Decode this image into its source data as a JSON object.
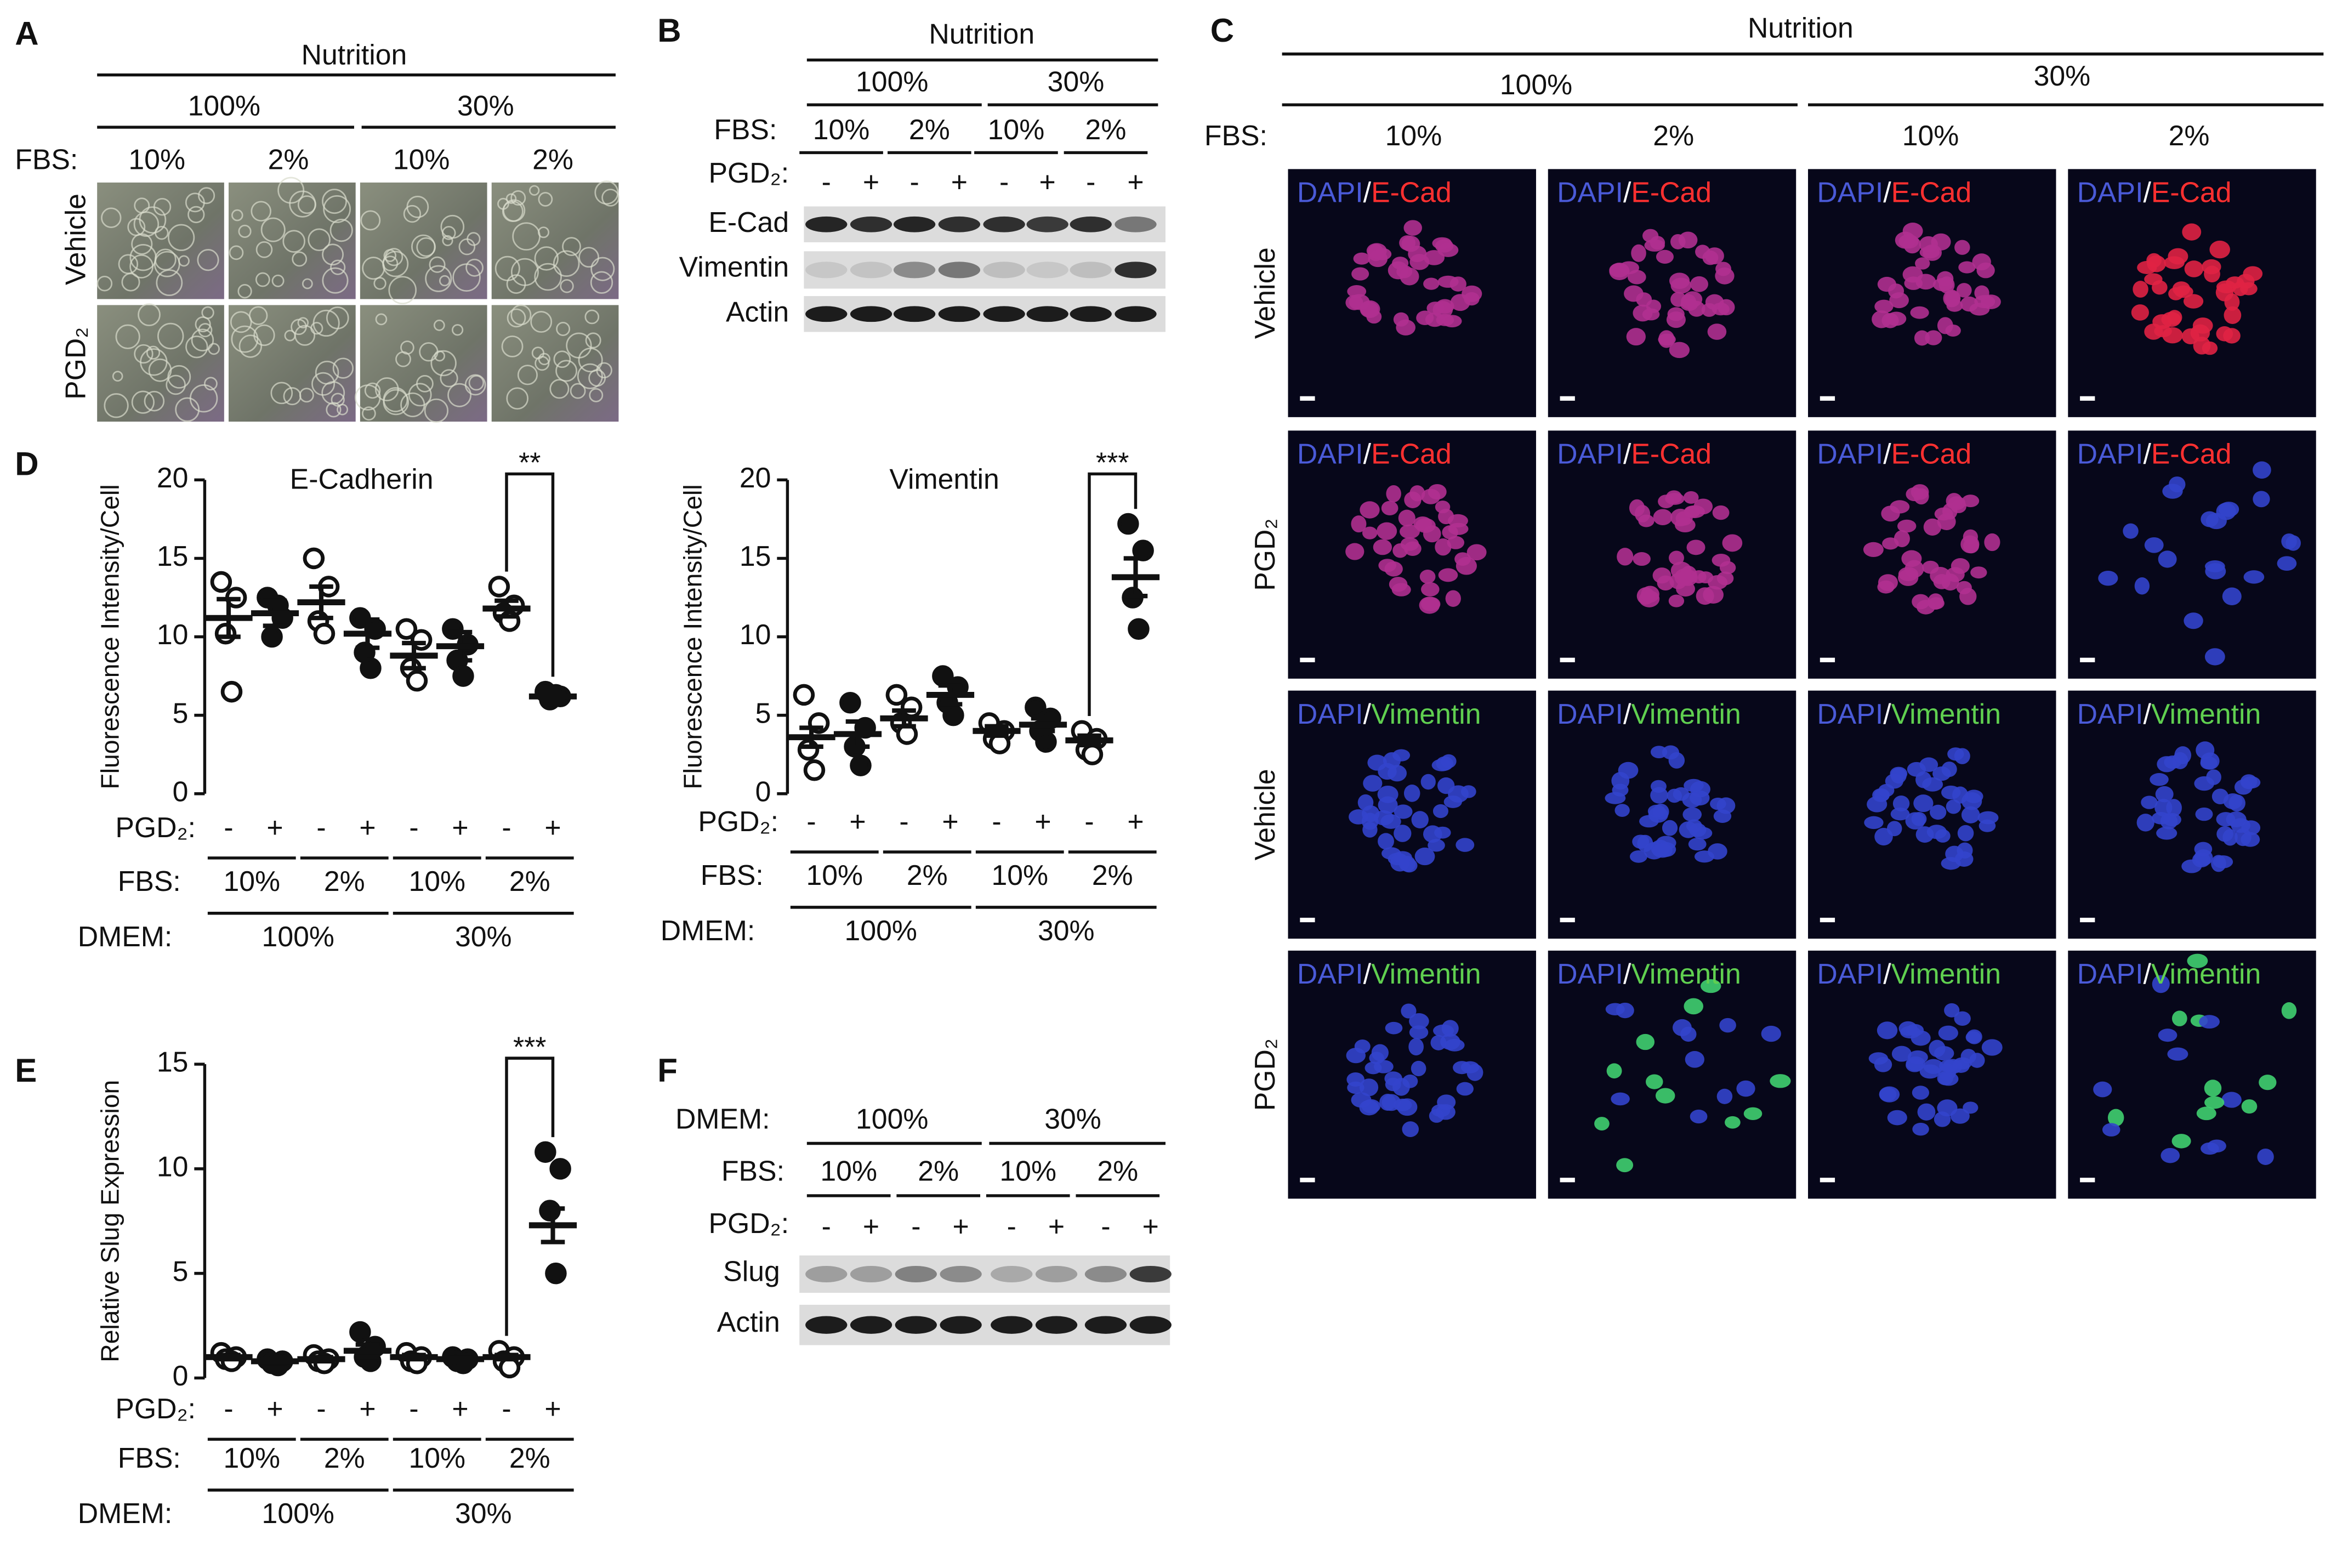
{
  "panel_labels": [
    "A",
    "B",
    "C",
    "D",
    "E",
    "F"
  ],
  "panel_a": {
    "title": "Nutrition",
    "nutrition": [
      "100%",
      "30%"
    ],
    "fbs_label": "FBS:",
    "fbs": [
      "10%",
      "2%",
      "10%",
      "2%"
    ],
    "rows": [
      "Vehicle",
      "PGD₂"
    ]
  },
  "panel_b": {
    "title": "Nutrition",
    "nutrition": [
      "100%",
      "30%"
    ],
    "fbs_label": "FBS:",
    "fbs": [
      "10%",
      "2%",
      "10%",
      "2%"
    ],
    "pgd2_label": "PGD₂:",
    "pgd2": [
      "-",
      "+",
      "-",
      "+",
      "-",
      "+",
      "-",
      "+"
    ],
    "blots": [
      "E-Cad",
      "Vimentin",
      "Actin"
    ]
  },
  "panel_c": {
    "title": "Nutrition",
    "nutrition": [
      "100%",
      "30%"
    ],
    "fbs_label": "FBS:",
    "fbs": [
      "10%",
      "2%",
      "10%",
      "2%"
    ],
    "rows": [
      "Vehicle",
      "PGD₂",
      "Vehicle",
      "PGD₂"
    ],
    "stain_dapi": "DAPI",
    "stain_sep": "/",
    "stains": [
      "E-Cad",
      "E-Cad",
      "Vimentin",
      "Vimentin"
    ]
  },
  "panel_f": {
    "dmem_label": "DMEM:",
    "dmem": [
      "100%",
      "30%"
    ],
    "fbs_label": "FBS:",
    "fbs": [
      "10%",
      "2%",
      "10%",
      "2%"
    ],
    "pgd2_label": "PGD₂:",
    "pgd2": [
      "-",
      "+",
      "-",
      "+",
      "-",
      "+",
      "-",
      "+"
    ],
    "blots": [
      "Slug",
      "Actin"
    ]
  },
  "chart_data": [
    {
      "type": "dotplot",
      "title": "E-Cadherin",
      "ylabel": "Fluorescence Intensity/Cell",
      "ylim": [
        0,
        20
      ],
      "yticks": [
        0,
        5,
        10,
        15,
        20
      ],
      "means": [
        11.2,
        11.5,
        12.2,
        10.2,
        8.8,
        9.4,
        11.8,
        6.2
      ],
      "errors": [
        1.2,
        0.8,
        1.0,
        0.9,
        0.8,
        0.9,
        0.5,
        0.2
      ],
      "points": [
        [
          13.5,
          12.5,
          10.2,
          6.5
        ],
        [
          12.5,
          11.2,
          10.0,
          12.0
        ],
        [
          15.0,
          13.2,
          11.0,
          10.2
        ],
        [
          11.2,
          10.5,
          9.0,
          8.0
        ],
        [
          10.5,
          9.8,
          8.0,
          7.2
        ],
        [
          10.5,
          9.5,
          8.5,
          7.5
        ],
        [
          13.2,
          12.0,
          11.5,
          11.0
        ],
        [
          6.5,
          6.2,
          6.0,
          6.3
        ]
      ],
      "significance": "**",
      "pgd2_label": "PGD₂:",
      "pgd2": [
        "-",
        "+",
        "-",
        "+",
        "-",
        "+",
        "-",
        "+"
      ],
      "fbs_label": "FBS:",
      "fbs": [
        "10%",
        "2%",
        "10%",
        "2%"
      ],
      "dmem_label": "DMEM:",
      "dmem": [
        "100%",
        "30%"
      ]
    },
    {
      "type": "dotplot",
      "title": "Vimentin",
      "ylabel": "Fluorescence Intensity/Cell",
      "ylim": [
        0,
        20
      ],
      "yticks": [
        0,
        5,
        10,
        15,
        20
      ],
      "means": [
        3.6,
        3.8,
        4.8,
        6.3,
        4.0,
        4.4,
        3.4,
        13.8
      ],
      "errors": [
        0.6,
        0.8,
        0.5,
        0.6,
        0.3,
        0.4,
        0.3,
        1.2
      ],
      "points": [
        [
          6.3,
          4.5,
          2.8,
          1.5
        ],
        [
          5.8,
          4.2,
          3.0,
          1.8
        ],
        [
          6.3,
          5.5,
          4.5,
          3.8
        ],
        [
          7.5,
          6.8,
          5.8,
          5.0
        ],
        [
          4.5,
          4.0,
          3.5,
          3.2
        ],
        [
          5.5,
          4.8,
          4.0,
          3.3
        ],
        [
          4.0,
          3.5,
          2.8,
          2.5
        ],
        [
          17.2,
          15.5,
          12.5,
          10.5
        ]
      ],
      "significance": "***",
      "pgd2_label": "PGD₂:",
      "pgd2": [
        "-",
        "+",
        "-",
        "+",
        "-",
        "+",
        "-",
        "+"
      ],
      "fbs_label": "FBS:",
      "fbs": [
        "10%",
        "2%",
        "10%",
        "2%"
      ],
      "dmem_label": "DMEM:",
      "dmem": [
        "100%",
        "30%"
      ]
    },
    {
      "type": "dotplot",
      "ylabel": "Relative Slug Expression",
      "ylim": [
        0,
        15
      ],
      "yticks": [
        0,
        5,
        10,
        15
      ],
      "means": [
        1.0,
        0.8,
        0.9,
        1.3,
        1.0,
        0.9,
        1.0,
        7.3
      ],
      "errors": [
        0.1,
        0.1,
        0.1,
        0.3,
        0.1,
        0.1,
        0.1,
        0.8
      ],
      "points": [
        [
          1.2,
          1.0,
          0.9,
          0.8
        ],
        [
          0.9,
          0.8,
          0.7,
          0.6
        ],
        [
          1.1,
          0.9,
          0.8,
          0.7
        ],
        [
          2.2,
          1.5,
          1.0,
          0.8
        ],
        [
          1.2,
          1.0,
          0.8,
          0.7
        ],
        [
          1.0,
          0.9,
          0.8,
          0.7
        ],
        [
          1.3,
          1.0,
          0.8,
          0.5
        ],
        [
          10.8,
          10.0,
          8.0,
          5.0
        ]
      ],
      "significance": "***",
      "pgd2_label": "PGD₂:",
      "pgd2": [
        "-",
        "+",
        "-",
        "+",
        "-",
        "+",
        "-",
        "+"
      ],
      "fbs_label": "FBS:",
      "fbs": [
        "10%",
        "2%",
        "10%",
        "2%"
      ],
      "dmem_label": "DMEM:",
      "dmem": [
        "100%",
        "30%"
      ]
    }
  ]
}
